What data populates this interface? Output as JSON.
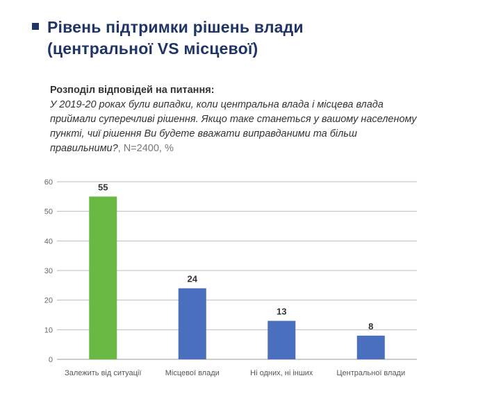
{
  "header": {
    "title_line1": "Рівень підтримки рішень влади",
    "title_line2": "(центральної VS місцевої)",
    "question_label": "Розподіл відповідей на питання:",
    "question_text": "У 2019-20 роках були випадки, коли центральна влада і місцева влада приймали суперечливі рішення. Якщо таке станеться у вашому населеному пункті, чиї рішення Ви будете вважати виправданими та більш правильними?",
    "sample_note": ", N=2400, %",
    "accent_color": "#1f3566"
  },
  "chart_data": {
    "type": "bar",
    "categories": [
      "Залежить від ситуації",
      "Місцевої влади",
      "Ні одних, ні  інших",
      "Центральної влади"
    ],
    "values": [
      55,
      24,
      13,
      8
    ],
    "colors": [
      "#6ab945",
      "#4a6fbf",
      "#4a6fbf",
      "#4a6fbf"
    ],
    "ylim": [
      0,
      60
    ],
    "yticks": [
      0,
      10,
      20,
      30,
      40,
      50,
      60
    ],
    "grid": true,
    "xlabel": "",
    "ylabel": ""
  }
}
